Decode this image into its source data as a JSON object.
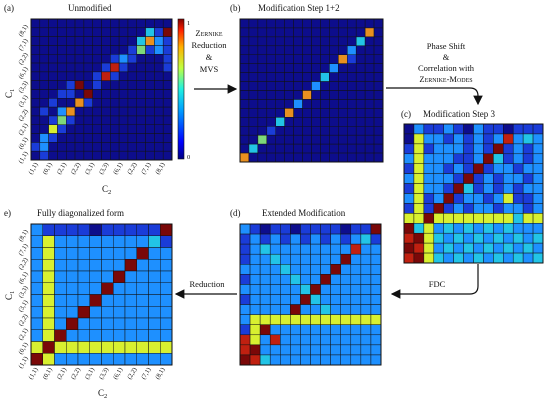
{
  "panels": {
    "a": {
      "letter": "(a)",
      "title": "Unmodified"
    },
    "b": {
      "letter": "(b)",
      "title": "Modification Step 1+2"
    },
    "c": {
      "letter": "(c)",
      "title": "Modification Step 3"
    },
    "d": {
      "letter": "(d)",
      "title": "Extended Modification"
    },
    "e": {
      "letter": "e)",
      "title": "Fully diagonalized form"
    }
  },
  "axes": {
    "x_label": "C",
    "x_sub": "2",
    "y_label": "C",
    "y_sub": "1",
    "tick_labels": [
      "(1,1)",
      "(0,1)",
      "(2,1)",
      "(2,2)",
      "(3,1)",
      "(3,3)",
      "(6,1)",
      "(2,2)",
      "(7,1)",
      "(8,1)"
    ]
  },
  "colorbar": {
    "max_label": "1",
    "min_label": "0"
  },
  "arrows": {
    "ab_line1": "Zernike",
    "ab_line2": "Reduction",
    "ab_line3": "&",
    "ab_line4": "MVS",
    "bc_line1": "Phase Shift",
    "bc_line2": "&",
    "bc_line3": "Correlation with",
    "bc_line4": "Zernike-Modes",
    "cd_label": "FDC",
    "de_label": "Reduction"
  },
  "colors": {
    "navy": "#0d0d8c",
    "blue": "#1a3cd8",
    "lightblue": "#1e90ff",
    "cyan": "#22c4e6",
    "green": "#7dd87a",
    "yellow": "#d8f030",
    "orange": "#e89020",
    "red": "#c02010",
    "darkred": "#7a0808"
  }
}
